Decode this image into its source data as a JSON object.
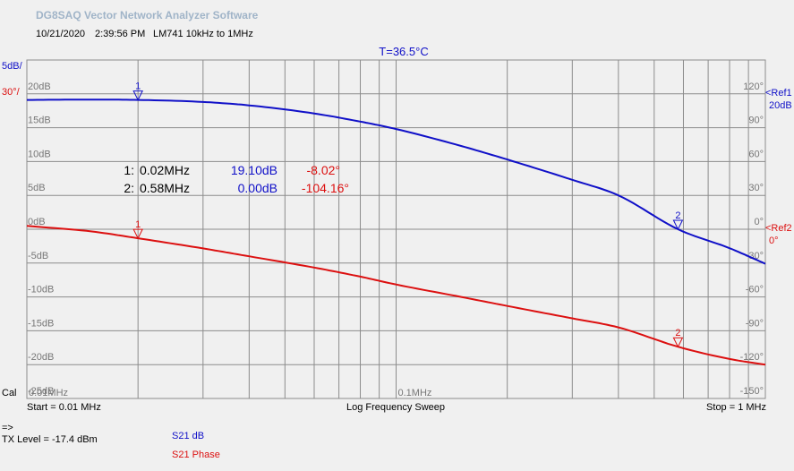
{
  "app": {
    "title": "DG8SAQ Vector Network Analyzer Software",
    "date": "10/21/2020",
    "time": "2:39:56 PM",
    "description": "LM741 10kHz to 1MHz"
  },
  "temperature": "T=36.5°C",
  "scales": {
    "left_top": "5dB/",
    "left_bottom": "30°/",
    "ref1": "<Ref1",
    "ref1_value": "20dB",
    "ref2": "<Ref2",
    "ref2_value": "0°"
  },
  "markers_table": [
    {
      "id": "1",
      "freq": "0.02MHz",
      "mag": "19.10dB",
      "phase": "-8.02°"
    },
    {
      "id": "2",
      "freq": "0.58MHz",
      "mag": "0.00dB",
      "phase": "-104.16°"
    }
  ],
  "footer": {
    "cal": "Cal",
    "start": "Start = 0.01 MHz",
    "sweep": "Log Frequency Sweep",
    "stop": "Stop = 1 MHz",
    "arrow": "=>",
    "tx_level": "TX Level = -17.4 dBm",
    "legend_db": "S21  dB",
    "legend_phase": "S21  Phase"
  },
  "colors": {
    "magnitude": "#1010c8",
    "phase": "#dc1010",
    "grid": "#8c8c8c",
    "background": "#f0f0f0"
  },
  "chart_data": {
    "type": "line",
    "x_scale": "log",
    "x_unit": "MHz",
    "xlim": [
      0.01,
      1
    ],
    "x_tick_labels": [
      "0.01MHz",
      "0.1MHz"
    ],
    "y_left": {
      "unit": "dB",
      "lim": [
        -25,
        25
      ],
      "tick_labels": [
        "20dB",
        "15dB",
        "10dB",
        "5dB",
        "0dB",
        "-5dB",
        "-10dB",
        "-15dB",
        "-20dB",
        "-25dB"
      ]
    },
    "y_right": {
      "unit": "deg",
      "lim": [
        -150,
        150
      ],
      "tick_labels": [
        "120°",
        "90°",
        "60°",
        "30°",
        "0°",
        "-30°",
        "-60°",
        "-90°",
        "-120°",
        "-150°"
      ]
    },
    "grid": true,
    "series": [
      {
        "name": "S21  dB",
        "axis": "left",
        "x": [
          0.01,
          0.015,
          0.02,
          0.03,
          0.04,
          0.06,
          0.08,
          0.1,
          0.15,
          0.2,
          0.3,
          0.4,
          0.58,
          0.8,
          1.0
        ],
        "y": [
          19.1,
          19.15,
          19.1,
          18.8,
          18.3,
          17.1,
          15.9,
          14.8,
          12.3,
          10.3,
          7.3,
          5.0,
          0.0,
          -2.8,
          -5.1
        ]
      },
      {
        "name": "S21  Phase",
        "axis": "right",
        "x": [
          0.01,
          0.015,
          0.02,
          0.03,
          0.04,
          0.06,
          0.08,
          0.1,
          0.15,
          0.2,
          0.3,
          0.4,
          0.58,
          0.8,
          1.0
        ],
        "y": [
          3.0,
          -2.0,
          -8.02,
          -17.0,
          -24.0,
          -34.0,
          -42.0,
          -49.0,
          -60.0,
          -68.0,
          -79.0,
          -87.0,
          -104.16,
          -115.0,
          -120.0
        ]
      }
    ],
    "markers": [
      {
        "label": "1",
        "x": 0.02,
        "mag": 19.1,
        "phase": -8.02
      },
      {
        "label": "2",
        "x": 0.58,
        "mag": 0.0,
        "phase": -104.16
      }
    ]
  }
}
